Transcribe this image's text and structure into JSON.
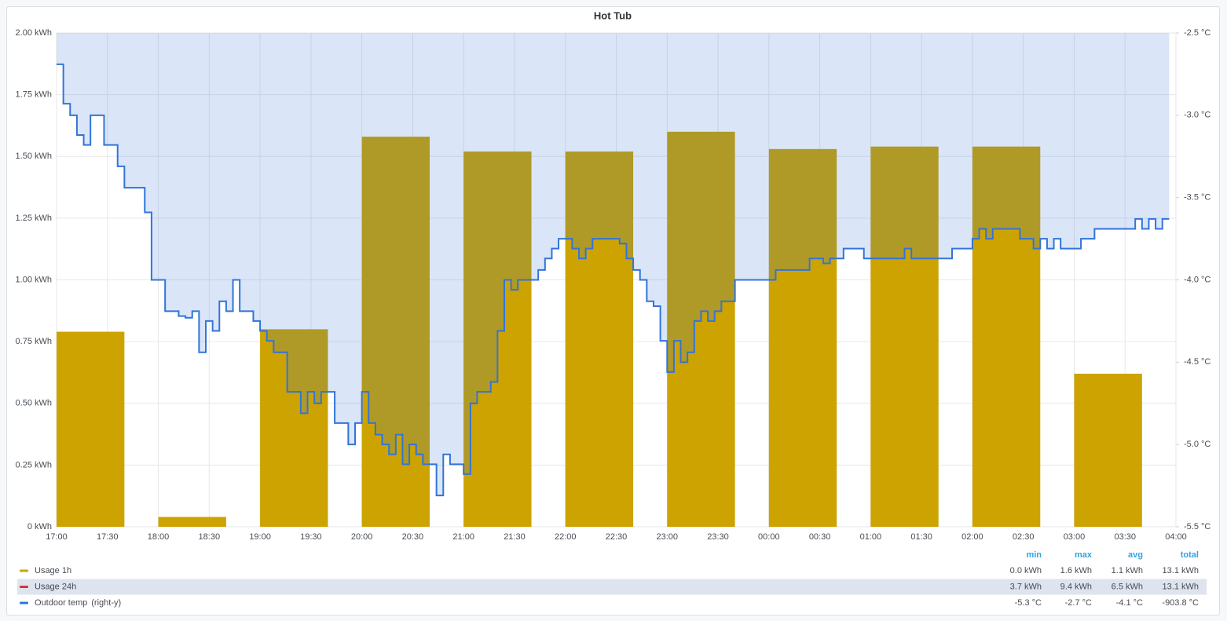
{
  "chart_data": {
    "type": "bar",
    "title": "Hot Tub",
    "xlim": [
      "17:00",
      "04:00"
    ],
    "xticks": [
      "17:00",
      "17:30",
      "18:00",
      "18:30",
      "19:00",
      "19:30",
      "20:00",
      "20:30",
      "21:00",
      "21:30",
      "22:00",
      "22:30",
      "23:00",
      "23:30",
      "00:00",
      "00:30",
      "01:00",
      "01:30",
      "02:00",
      "02:30",
      "03:00",
      "03:30",
      "04:00"
    ],
    "ylim": [
      0,
      2
    ],
    "yticks": [
      {
        "value": 0,
        "label": "0 kWh"
      },
      {
        "value": 0.25,
        "label": "0.25 kWh"
      },
      {
        "value": 0.5,
        "label": "0.50 kWh"
      },
      {
        "value": 0.75,
        "label": "0.75 kWh"
      },
      {
        "value": 1,
        "label": "1.00 kWh"
      },
      {
        "value": 1.25,
        "label": "1.25 kWh"
      },
      {
        "value": 1.5,
        "label": "1.50 kWh"
      },
      {
        "value": 1.75,
        "label": "1.75 kWh"
      },
      {
        "value": 2,
        "label": "2.00 kWh"
      }
    ],
    "y2lim": [
      -5.5,
      -2.5
    ],
    "y2ticks": [
      {
        "value": -5.5,
        "label": "-5.5 °C"
      },
      {
        "value": -5,
        "label": "-5.0 °C"
      },
      {
        "value": -4.5,
        "label": "-4.5 °C"
      },
      {
        "value": -4,
        "label": "-4.0 °C"
      },
      {
        "value": -3.5,
        "label": "-3.5 °C"
      },
      {
        "value": -3,
        "label": "-3.0 °C"
      },
      {
        "value": -2.5,
        "label": "-2.5 °C"
      }
    ],
    "grid": true,
    "legend_columns": [
      "min",
      "max",
      "avg",
      "total"
    ],
    "series": [
      {
        "name": "Usage 1h",
        "type": "bar",
        "color": "#cca300",
        "x": [
          "17:00",
          "18:00",
          "19:00",
          "20:00",
          "21:00",
          "22:00",
          "23:00",
          "00:00",
          "01:00",
          "02:00",
          "03:00"
        ],
        "values": [
          0.79,
          0.04,
          0.8,
          1.58,
          1.52,
          1.52,
          1.6,
          1.53,
          1.54,
          1.54,
          0.62
        ],
        "stats": [
          "0.0 kWh",
          "1.6 kWh",
          "1.1 kWh",
          "13.1 kWh"
        ]
      },
      {
        "name": "Usage 24h",
        "color": "#e02f44",
        "hidden": true,
        "stats": [
          "3.7 kWh",
          "9.4 kWh",
          "6.5 kWh",
          "13.1 kWh"
        ]
      },
      {
        "name": "Outdoor temp",
        "type": "line",
        "axis": "y2",
        "color": "#3274d9",
        "legend_suffix": "(right-y)",
        "x": [
          "17:00",
          "17:04",
          "17:08",
          "17:12",
          "17:16",
          "17:20",
          "17:28",
          "17:36",
          "17:40",
          "17:52",
          "17:56",
          "18:04",
          "18:12",
          "18:16",
          "18:20",
          "18:24",
          "18:28",
          "18:32",
          "18:36",
          "18:40",
          "18:44",
          "18:48",
          "18:56",
          "19:00",
          "19:04",
          "19:08",
          "19:16",
          "19:24",
          "19:28",
          "19:32",
          "19:36",
          "19:44",
          "19:52",
          "19:56",
          "20:00",
          "20:04",
          "20:08",
          "20:12",
          "20:16",
          "20:20",
          "20:24",
          "20:28",
          "20:32",
          "20:36",
          "20:44",
          "20:48",
          "20:52",
          "21:00",
          "21:04",
          "21:08",
          "21:16",
          "21:20",
          "21:24",
          "21:28",
          "21:32",
          "21:44",
          "21:48",
          "21:52",
          "21:56",
          "22:04",
          "22:08",
          "22:12",
          "22:16",
          "22:32",
          "22:36",
          "22:40",
          "22:44",
          "22:48",
          "22:52",
          "22:56",
          "23:00",
          "23:04",
          "23:08",
          "23:12",
          "23:16",
          "23:20",
          "23:24",
          "23:28",
          "23:32",
          "23:40",
          "00:04",
          "00:24",
          "00:32",
          "00:36",
          "00:44",
          "00:56",
          "01:20",
          "01:24",
          "01:48",
          "02:00",
          "02:04",
          "02:08",
          "02:12",
          "02:28",
          "02:36",
          "02:40",
          "02:44",
          "02:48",
          "02:52",
          "03:04",
          "03:12",
          "03:36",
          "03:40",
          "03:44",
          "03:48",
          "03:52",
          "03:56"
        ],
        "values": [
          -2.69,
          -2.93,
          -3.0,
          -3.12,
          -3.18,
          -3.0,
          -3.18,
          -3.31,
          -3.44,
          -3.59,
          -4.0,
          -4.19,
          -4.22,
          -4.23,
          -4.19,
          -4.44,
          -4.25,
          -4.31,
          -4.13,
          -4.19,
          -4.0,
          -4.19,
          -4.25,
          -4.31,
          -4.37,
          -4.44,
          -4.68,
          -4.81,
          -4.68,
          -4.75,
          -4.68,
          -4.87,
          -5.0,
          -4.87,
          -4.68,
          -4.87,
          -4.94,
          -5.0,
          -5.06,
          -4.94,
          -5.12,
          -5.0,
          -5.06,
          -5.12,
          -5.31,
          -5.06,
          -5.12,
          -5.18,
          -4.75,
          -4.68,
          -4.62,
          -4.31,
          -4.0,
          -4.06,
          -4.0,
          -3.94,
          -3.87,
          -3.81,
          -3.75,
          -3.81,
          -3.87,
          -3.81,
          -3.75,
          -3.78,
          -3.87,
          -3.94,
          -4.0,
          -4.13,
          -4.16,
          -4.37,
          -4.56,
          -4.37,
          -4.5,
          -4.44,
          -4.25,
          -4.19,
          -4.25,
          -4.19,
          -4.13,
          -4.0,
          -3.94,
          -3.87,
          -3.9,
          -3.87,
          -3.81,
          -3.87,
          -3.81,
          -3.87,
          -3.81,
          -3.75,
          -3.69,
          -3.75,
          -3.69,
          -3.75,
          -3.81,
          -3.75,
          -3.81,
          -3.75,
          -3.81,
          -3.75,
          -3.69,
          -3.63,
          -3.69,
          -3.63,
          -3.69,
          -3.63,
          -3.63
        ],
        "stats": [
          "-5.3 °C",
          "-2.7 °C",
          "-4.1 °C",
          "-903.8 °C"
        ]
      }
    ]
  }
}
